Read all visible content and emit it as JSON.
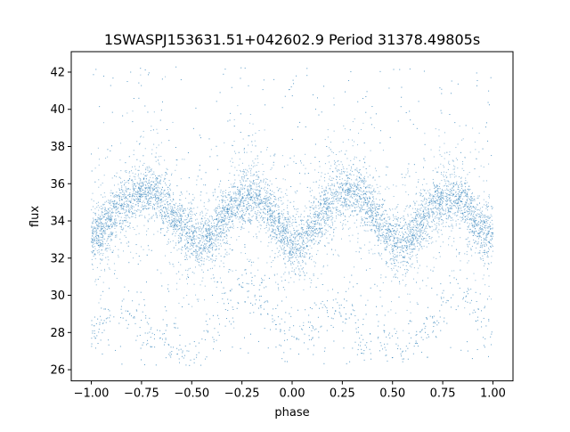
{
  "chart_data": {
    "type": "scatter",
    "title": "1SWASPJ153631.51+042602.9 Period 31378.49805s",
    "xlabel": "phase",
    "ylabel": "flux",
    "xlim": [
      -1.1,
      1.1
    ],
    "ylim": [
      25.4,
      43.1
    ],
    "xticks": [
      -1.0,
      -0.75,
      -0.5,
      -0.25,
      0.0,
      0.25,
      0.5,
      0.75,
      1.0
    ],
    "xtick_labels": [
      "−1.00",
      "−0.75",
      "−0.50",
      "−0.25",
      "0.00",
      "0.25",
      "0.50",
      "0.75",
      "1.00"
    ],
    "yticks": [
      26,
      28,
      30,
      32,
      34,
      36,
      38,
      40,
      42
    ],
    "ytick_labels": [
      "26",
      "28",
      "30",
      "32",
      "34",
      "36",
      "38",
      "40",
      "42"
    ],
    "grid": false,
    "legend": "none",
    "series": [
      {
        "color": "#1f77b4",
        "marker_size": "tiny",
        "point_density": "very high (tens of thousands of points)",
        "description_of_shape": "double-humped light curve repeated twice over phase -1 to 1",
        "x": [
          -1.0,
          -0.95,
          -0.9,
          -0.85,
          -0.8,
          -0.75,
          -0.7,
          -0.65,
          -0.6,
          -0.55,
          -0.5,
          -0.45,
          -0.4,
          -0.35,
          -0.3,
          -0.25,
          -0.2,
          -0.15,
          -0.1,
          -0.05,
          0.0,
          0.05,
          0.1,
          0.15,
          0.2,
          0.25,
          0.3,
          0.35,
          0.4,
          0.45,
          0.5,
          0.55,
          0.6,
          0.65,
          0.7,
          0.75,
          0.8,
          0.85,
          0.9,
          0.95,
          1.0
        ],
        "y_center": [
          33.2,
          33.5,
          34.1,
          34.8,
          35.3,
          35.6,
          35.6,
          35.2,
          34.5,
          33.6,
          33.0,
          32.8,
          33.1,
          33.9,
          34.6,
          35.1,
          35.3,
          35.0,
          34.3,
          33.4,
          32.8,
          32.9,
          33.5,
          34.4,
          35.2,
          35.6,
          35.7,
          35.3,
          34.5,
          33.6,
          32.9,
          32.8,
          33.2,
          34.0,
          34.7,
          35.2,
          35.3,
          35.0,
          34.2,
          33.5,
          33.2
        ],
        "band_halfwidth": 1.3,
        "secondary_track_y": [
          27.6,
          28.3,
          28.9,
          29.3,
          29.0,
          28.5,
          28.0,
          27.7,
          27.4,
          27.2,
          27.0,
          27.4,
          28.1,
          28.9,
          29.7,
          30.4,
          30.3,
          29.6,
          28.8,
          28.0,
          27.3,
          27.6,
          28.3,
          28.9,
          29.3,
          29.0,
          28.5,
          28.0,
          27.7,
          27.4,
          27.2,
          27.0,
          27.4,
          28.1,
          28.9,
          29.7,
          30.4,
          30.3,
          29.6,
          28.8,
          28.0
        ],
        "scatter_range_y": [
          26.2,
          42.3
        ]
      }
    ]
  }
}
